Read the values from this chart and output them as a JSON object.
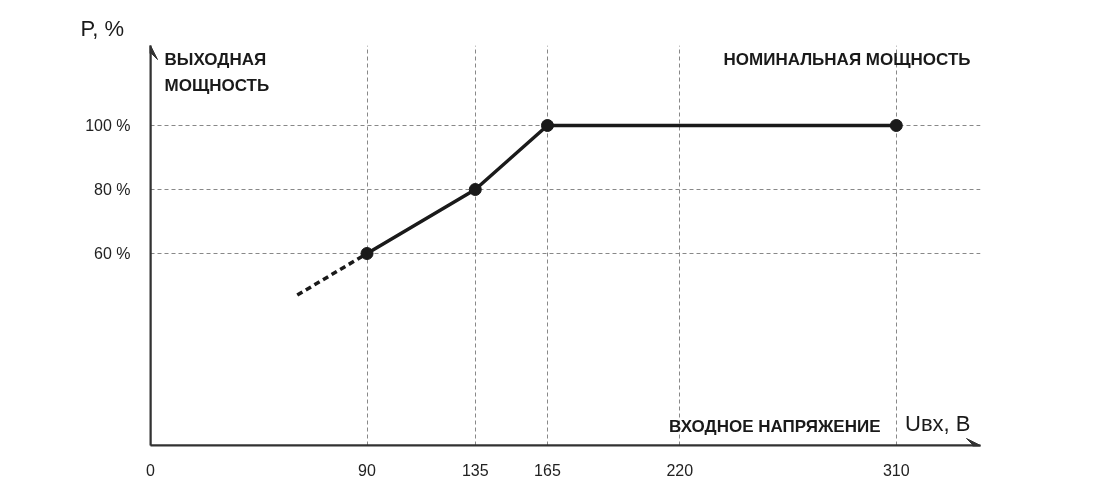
{
  "chart_data": {
    "type": "line",
    "xlabel": "Uвх, В",
    "ylabel": "P, %",
    "annotations": [
      "ВЫХОДНАЯ МОЩНОСТЬ",
      "НОМИНАЛЬНАЯ МОЩНОСТЬ",
      "ВХОДНОЕ НАПРЯЖЕНИЕ"
    ],
    "series": [
      {
        "color": "#1a1a1a",
        "x": [
          90,
          135,
          165,
          310
        ],
        "values": [
          60,
          80,
          100,
          100
        ],
        "marker": "circle",
        "line_style": "solid"
      },
      {
        "color": "#1a1a1a",
        "x": [
          61,
          90
        ],
        "values": [
          47,
          60
        ],
        "marker": "none",
        "line_style": "dashed"
      }
    ],
    "xlim": [
      0,
      345
    ],
    "ylim": [
      0,
      125
    ],
    "xticks": [
      0,
      90,
      135,
      165,
      220,
      310
    ],
    "yticks": [
      {
        "value": 60,
        "label": "60 %"
      },
      {
        "value": 80,
        "label": "80 %"
      },
      {
        "value": 100,
        "label": "100 %"
      }
    ],
    "grid": true
  }
}
